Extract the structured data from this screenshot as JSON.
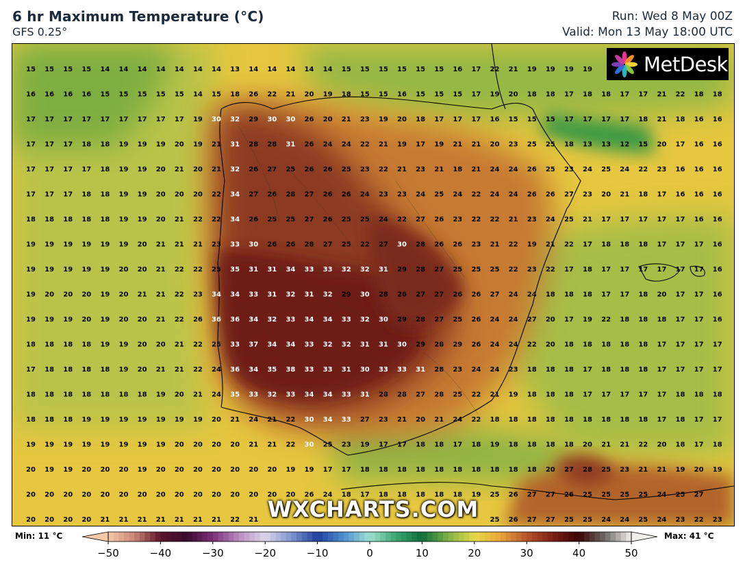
{
  "header": {
    "title": "6 hr Maximum Temperature (°C)",
    "model": "GFS 0.25°",
    "run": "Run: Wed 8 May 00Z",
    "valid": "Valid: Mon 13 May 18:00 UTC"
  },
  "logo": {
    "text": "MetDesk",
    "icon": "metdesk-flower-icon"
  },
  "watermark": "WXCHARTS.COM",
  "colorbar": {
    "min_label": "Min: 11 °C",
    "max_label": "Max: 41 °C",
    "ticks": [
      "−50",
      "−40",
      "−30",
      "−20",
      "−10",
      "0",
      "10",
      "20",
      "30",
      "40",
      "50"
    ],
    "range": [
      -50,
      50
    ]
  },
  "grid": [
    "15 15 15 15 14 14 14 14 14 14 14 13 14 14 14 14 14 15 15 15 15 15 15 16 17 22 21 19 19 19 19 . . . . . .",
    "16 16 16 16 15 15 15 15 15 14 15 18 26 22 21 20 19 18 15 15 16 15 15 15 17 19 20 18 18 17 18 18 17 17 21 22 18 18",
    "17 17 17 17 17 17 17 17 17 19 30 32 29 30 30 26 20 21 23 19 20 18 17 17 17 16 15 15 15 17 17 17 17 18 21 18 16 16",
    "17 17 17 18 18 19 19 19 20 19 21 31 28 28 31 26 24 24 22 21 19 17 19 21 21 20 23 25 25 18 13 13 12 15 20 17 16 16",
    "17 17 17 17 18 19 19 20 21 20 21 32 26 27 25 26 26 25 23 22 21 23 21 18 21 24 24 26 25 23 24 25 24 22 23 16 16 16",
    "17 17 17 18 18 19 19 20 20 20 22 34 27 26 28 27 26 26 24 23 23 24 25 24 22 24 24 26 26 27 23 20 21 18 17 16 16 16",
    "18 18 18 18 18 19 19 20 21 22 22 34 26 25 25 27 26 25 25 24 22 27 26 23 22 22 21 23 24 25 21 17 17 17 17 17 16 16",
    "19 19 19 19 19 19 20 21 21 21 23 33 30 26 26 28 27 25 22 27 30 28 26 26 23 21 22 19 21 22 17 18 18 18 17 17 17 16",
    "19 19 19 19 19 20 20 21 22 22 25 35 31 31 34 33 33 32 32 31 29 28 27 25 25 25 22 23 22 17 18 17 17 17 17 17 17 16",
    "19 20 20 20 19 20 21 21 22 23 34 34 33 31 32 31 32 29 30 28 26 27 27 26 26 27 24 24 18 18 18 17 17 18 20 17 17 16",
    "19 19 19 20 19 20 20 21 22 26 36 36 34 32 33 34 34 33 32 30 29 28 27 25 26 24 24 27 20 17 19 22 18 18 18 17 17 16",
    "18 18 18 18 19 19 20 20 21 22 25 33 37 34 34 33 32 32 31 31 30 29 28 29 26 24 24 22 20 18 18 18 18 18 17 17 17 17",
    "17 18 18 18 18 19 20 21 21 22 24 36 34 35 38 33 33 31 30 33 33 31 28 23 24 24 23 18 18 18 17 18 18 18 17 17 17 17",
    "18 18 18 18 18 18 18 19 20 21 24 35 33 32 33 34 34 33 31 28 28 27 28 25 22 21 19 18 18 18 17 17 17 17 17 18 18 18",
    "18 18 18 19 19 19 19 19 19 19 20 21 24 21 22 30 34 33 27 23 21 20 21 24 22 18 18 18 18 18 18 18 18 18 17 18 17 17",
    "19 19 19 19 19 19 19 19 20 20 20 20 21 21 22 30 25 23 19 17 17 18 18 17 18 19 18 18 18 18 20 21 21 22 20 18 17 18",
    "20 19 19 20 20 20 19 20 20 20 20 20 20 20 19 19 17 17 18 18 18 18 18 18 18 18 18 18 20 27 28 25 23 21 21 19 20 19",
    "20 20 20 20 20 20 20 20 20 20 20 20 20 20 20 26 24 18 17 18 18 18 18 18 19 25 26 27 27 26 25 25 25 25 24 25 27 .",
    "20 20 20 20 21 21 21 21 21 21 21 22 21 . . . . . . . . . . . . 25 26 27 27 25 25 24 24 25 24 23 22 23 ."
  ]
}
